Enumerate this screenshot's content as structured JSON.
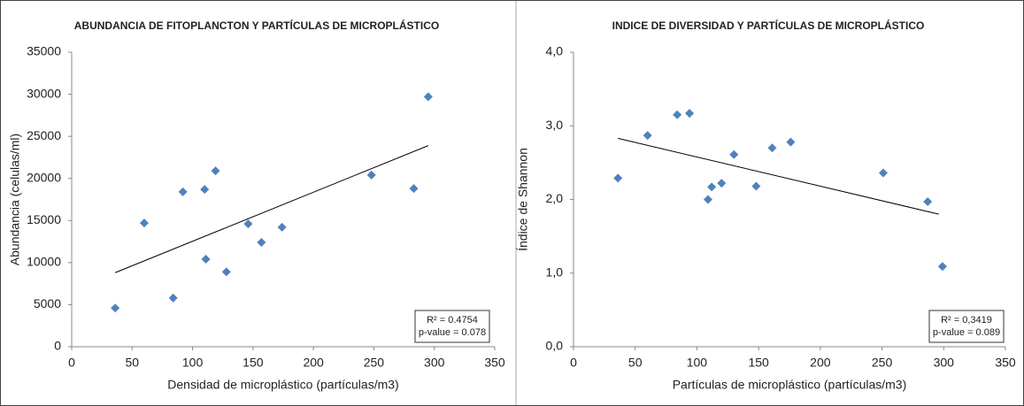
{
  "chart_data": [
    {
      "type": "scatter",
      "title": "ABUNDANCIA DE FITOPLANCTON Y PARTÍCULAS DE MICROPLÁSTICO",
      "x_label": "Densidad de microplástico (partículas/m3)",
      "y_label": "Abundancia  (celulas/ml)",
      "x": [
        36,
        60,
        84,
        92,
        110,
        111,
        119,
        128,
        146,
        157,
        174,
        248,
        283,
        295
      ],
      "series": [
        {
          "color": "#4f81bd",
          "values": [
            4600,
            14700,
            5800,
            18400,
            18700,
            10400,
            20900,
            8900,
            14600,
            12400,
            14200,
            20400,
            18800,
            29700
          ]
        }
      ],
      "trendline": {
        "x": [
          36,
          295
        ],
        "y": [
          8800,
          23900
        ],
        "color": "#000000"
      },
      "annotations": [
        "R² = 0.4754",
        "p-value  = 0.078"
      ],
      "xlim": [
        0,
        350
      ],
      "xticks": [
        0,
        50,
        100,
        150,
        200,
        250,
        300,
        350
      ],
      "ylim": [
        0,
        35000
      ],
      "yticks": [
        0,
        5000,
        10000,
        15000,
        20000,
        25000,
        30000,
        35000
      ]
    },
    {
      "type": "scatter",
      "title": "INDICE DE DIVERSIDAD Y PARTÍCULAS DE MICROPLÁSTICO",
      "x_label": "Partículas  de microplástico (partículas/m3)",
      "y_label": "Índice de Shannon",
      "x": [
        36,
        60,
        84,
        94,
        109,
        112,
        120,
        130,
        148,
        161,
        176,
        251,
        287,
        299
      ],
      "series": [
        {
          "color": "#4f81bd",
          "values": [
            2.29,
            2.87,
            3.15,
            3.17,
            2.0,
            2.17,
            2.22,
            2.61,
            2.18,
            2.7,
            2.78,
            2.36,
            1.97,
            1.09
          ]
        }
      ],
      "trendline": {
        "x": [
          36,
          296
        ],
        "y": [
          2.83,
          1.8
        ],
        "color": "#000000"
      },
      "annotations": [
        "R² = 0,3419",
        "p-value  = 0.089"
      ],
      "xlim": [
        0,
        350
      ],
      "xticks": [
        0,
        50,
        100,
        150,
        200,
        250,
        300,
        350
      ],
      "ylim": [
        0,
        4
      ],
      "yticks": [
        {
          "value": 0,
          "label": "0,0"
        },
        {
          "value": 1,
          "label": "1,0"
        },
        {
          "value": 2,
          "label": "2,0"
        },
        {
          "value": 3,
          "label": "3,0"
        },
        {
          "value": 4,
          "label": "4,0"
        }
      ]
    }
  ]
}
